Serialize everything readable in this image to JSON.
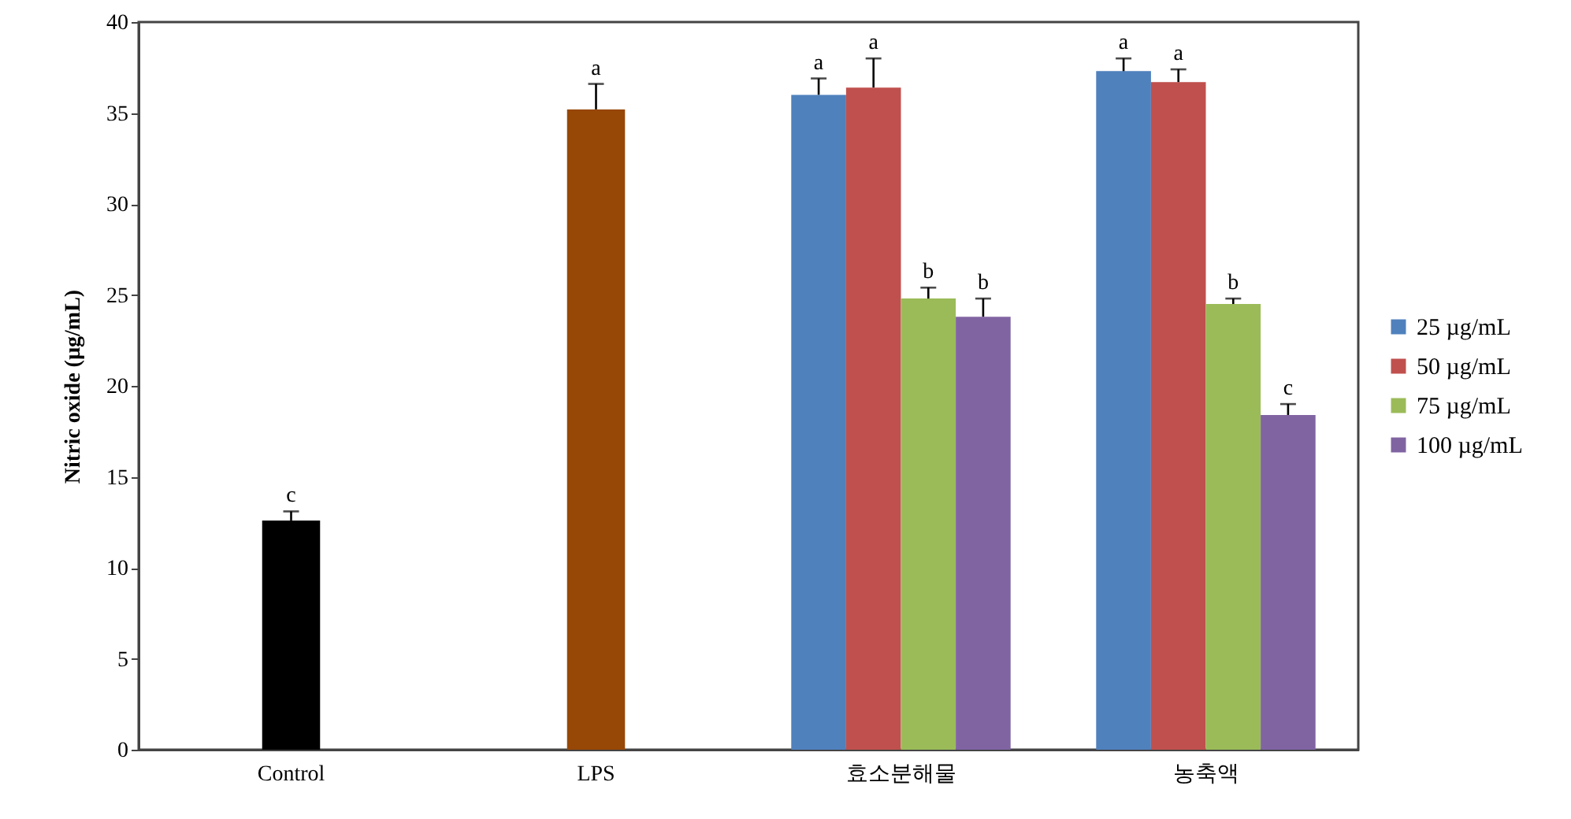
{
  "chart_data": {
    "type": "bar",
    "ylabel": "Nitric oxide (µg/mL)",
    "categories": [
      "Control",
      "LPS",
      "효소분해물",
      "농축액"
    ],
    "ylim": [
      0,
      40
    ],
    "yticks": [
      0,
      5,
      10,
      15,
      20,
      25,
      30,
      35,
      40
    ],
    "legend": "right",
    "series": [
      {
        "color": "#000000",
        "values": [
          12.6,
          null,
          null,
          null
        ],
        "errors": [
          [
            12.6,
            13.1
          ],
          null,
          null,
          null
        ],
        "value_labels": [
          "c",
          null,
          null,
          null
        ]
      },
      {
        "color": "#974706",
        "values": [
          null,
          35.2,
          null,
          null
        ],
        "errors": [
          null,
          [
            35.2,
            36.6
          ],
          null,
          null
        ],
        "value_labels": [
          null,
          "a",
          null,
          null
        ]
      },
      {
        "name": "25 µg/mL",
        "color": "#4f81bd",
        "values": [
          null,
          null,
          36.0,
          37.3
        ],
        "errors": [
          null,
          null,
          [
            36.0,
            36.9
          ],
          [
            37.3,
            38.0
          ]
        ],
        "value_labels": [
          null,
          null,
          "a",
          "a"
        ]
      },
      {
        "name": "50 µg/mL",
        "color": "#c0504d",
        "values": [
          null,
          null,
          36.4,
          36.7
        ],
        "errors": [
          null,
          null,
          [
            36.4,
            38.0
          ],
          [
            36.7,
            37.4
          ]
        ],
        "value_labels": [
          null,
          null,
          "a",
          "a"
        ]
      },
      {
        "name": "75 µg/mL",
        "color": "#9bbb59",
        "values": [
          null,
          null,
          24.8,
          24.5
        ],
        "errors": [
          null,
          null,
          [
            24.8,
            25.4
          ],
          [
            24.5,
            24.8
          ]
        ],
        "value_labels": [
          null,
          null,
          "b",
          "b"
        ]
      },
      {
        "name": "100 µg/mL",
        "color": "#8064a2",
        "values": [
          null,
          null,
          23.8,
          18.4
        ],
        "errors": [
          null,
          null,
          [
            23.8,
            24.8
          ],
          [
            18.4,
            19.0
          ]
        ],
        "value_labels": [
          null,
          null,
          "b",
          "c"
        ]
      }
    ]
  }
}
